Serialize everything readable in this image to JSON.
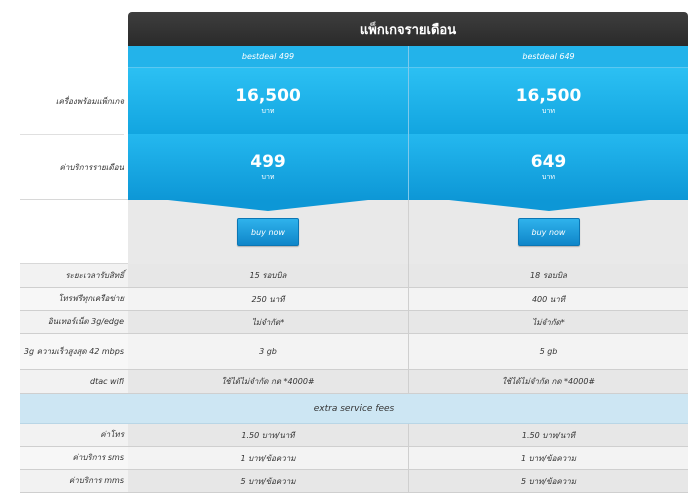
{
  "header": {
    "title": "แพ็กเกจรายเดือน"
  },
  "packages": [
    {
      "name": "bestdeal 499",
      "device_price": "16,500",
      "device_unit": "บาท",
      "monthly_fee": "499",
      "monthly_unit": "บาท",
      "buy_label": "buy now"
    },
    {
      "name": "bestdeal 649",
      "device_price": "16,500",
      "device_unit": "บาท",
      "monthly_fee": "649",
      "monthly_unit": "บาท",
      "buy_label": "buy now"
    }
  ],
  "labels": {
    "device_price": "เครื่องพร้อมแพ็กเกจ",
    "monthly_fee": "ค่าบริการรายเดือน"
  },
  "rows": [
    {
      "label": "ระยะเวลารับสิทธิ์",
      "values": [
        "15 รอบบิล",
        "18 รอบบิล"
      ]
    },
    {
      "label": "โทรฟรีทุกเครือข่าย",
      "values": [
        "250 นาที",
        "400 นาที"
      ]
    },
    {
      "label": "อินเทอร์เน็ต 3g/edge",
      "values": [
        "ไม่จำกัด*",
        "ไม่จำกัด*"
      ]
    },
    {
      "label": "3g ความเร็วสูงสุด 42 mbps",
      "values": [
        "3 gb",
        "5 gb"
      ]
    },
    {
      "label": "dtac wifi",
      "values": [
        "ใช้ได้ไม่จำกัด กด *4000#",
        "ใช้ได้ไม่จำกัด กด *4000#"
      ]
    }
  ],
  "extra": {
    "title": "extra service fees"
  },
  "fee_rows": [
    {
      "label": "ค่าโทร",
      "values": [
        "1.50 บาท/นาที",
        "1.50 บาท/นาที"
      ]
    },
    {
      "label": "ค่าบริการ sms",
      "values": [
        "1 บาท/ข้อความ",
        "1 บาท/ข้อความ"
      ]
    },
    {
      "label": "ค่าบริการ mms",
      "values": [
        "5 บาท/ข้อความ",
        "5 บาท/ข้อความ"
      ]
    }
  ]
}
